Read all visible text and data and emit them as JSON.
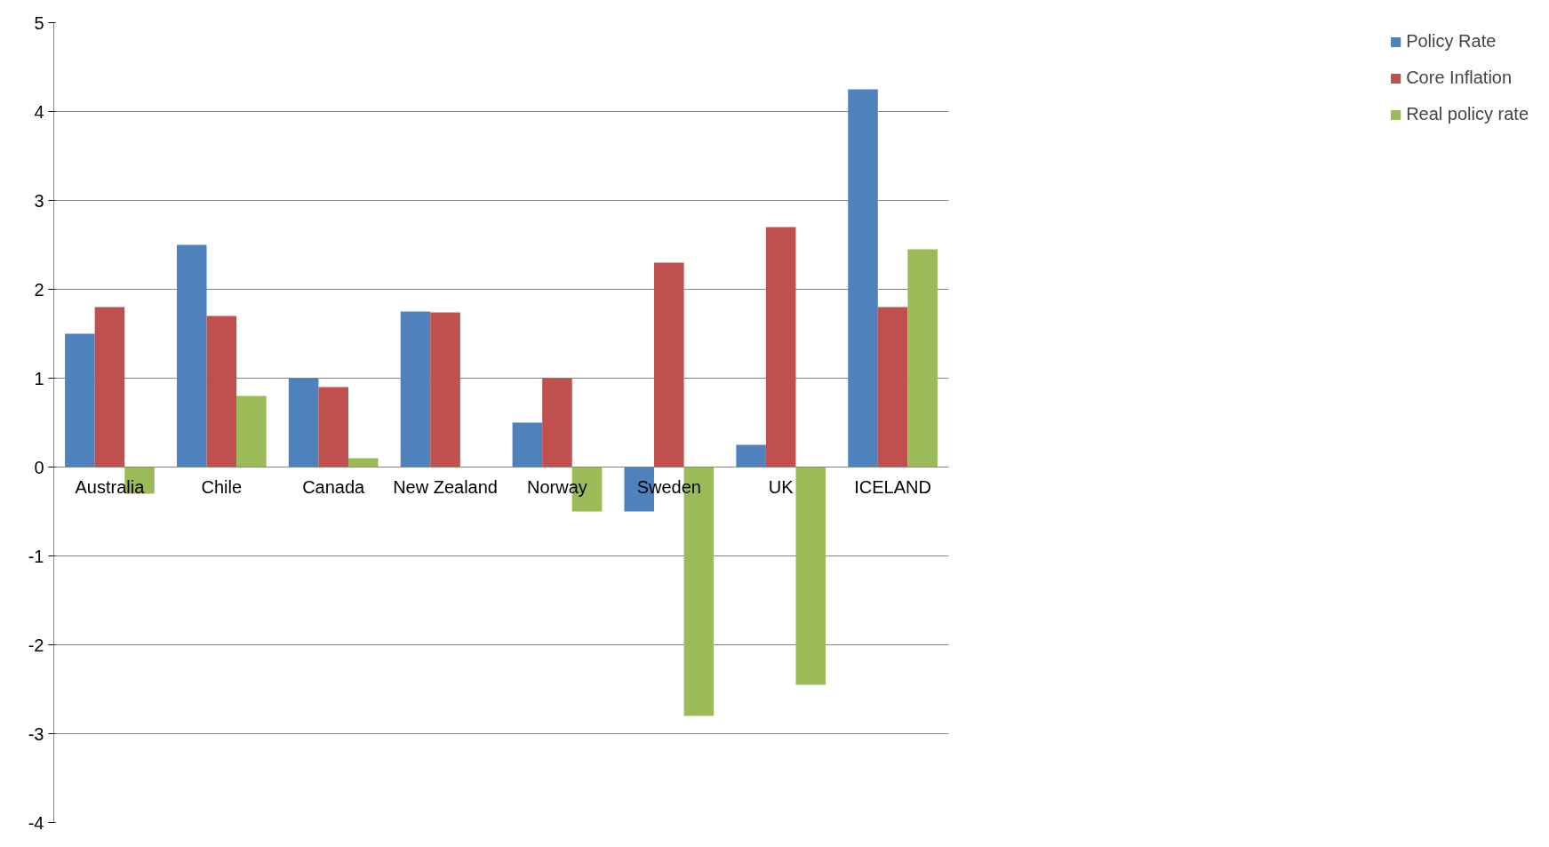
{
  "chart_data": {
    "type": "bar",
    "categories": [
      "Australia",
      "Chile",
      "Canada",
      "New Zealand",
      "Norway",
      "Sweden",
      "UK",
      "ICELAND"
    ],
    "series": [
      {
        "name": "Policy Rate",
        "color": "#4f81bd",
        "values": [
          1.5,
          2.5,
          1.0,
          1.75,
          0.5,
          -0.5,
          0.25,
          4.25
        ]
      },
      {
        "name": "Core Inflation",
        "color": "#c0504d",
        "values": [
          1.8,
          1.7,
          0.9,
          1.74,
          1.0,
          2.3,
          2.7,
          1.8
        ]
      },
      {
        "name": "Real policy rate",
        "color": "#9bbb59",
        "values": [
          -0.3,
          0.8,
          0.1,
          0,
          -0.5,
          -2.8,
          -2.45,
          2.45
        ]
      }
    ],
    "ylim": [
      -4,
      5
    ],
    "yticks": [
      -4,
      -3,
      -2,
      -1,
      0,
      1,
      2,
      3,
      4,
      5
    ],
    "grid": "y",
    "legend": "right"
  }
}
